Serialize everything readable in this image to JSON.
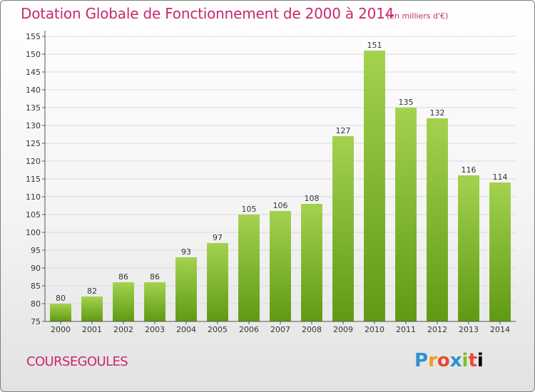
{
  "header": {
    "title": "Dotation Globale de Fonctionnement de 2000 à 2014",
    "unit": "(en milliers d'€)"
  },
  "footer": {
    "commune": "COURSEGOULES",
    "logo": [
      "P",
      "r",
      "o",
      "x",
      "i",
      "t",
      "i"
    ]
  },
  "chart_data": {
    "type": "bar",
    "title": "Dotation Globale de Fonctionnement de 2000 à 2014",
    "subtitle": "(en milliers d'€)",
    "categories": [
      "2000",
      "2001",
      "2002",
      "2003",
      "2004",
      "2005",
      "2006",
      "2007",
      "2008",
      "2009",
      "2010",
      "2011",
      "2012",
      "2013",
      "2014"
    ],
    "values": [
      80,
      82,
      86,
      86,
      93,
      97,
      105,
      106,
      108,
      127,
      151,
      135,
      132,
      116,
      114
    ],
    "ylim": [
      75,
      155
    ],
    "yticks": [
      75,
      80,
      85,
      90,
      95,
      100,
      105,
      110,
      115,
      120,
      125,
      130,
      135,
      140,
      145,
      150,
      155
    ],
    "grid": true,
    "colors": {
      "bar_top": "#a4d24e",
      "bar_bottom": "#5f9a12",
      "grid": "#d9d9d9",
      "axis": "#555555",
      "text_accent": "#c8286e"
    }
  }
}
